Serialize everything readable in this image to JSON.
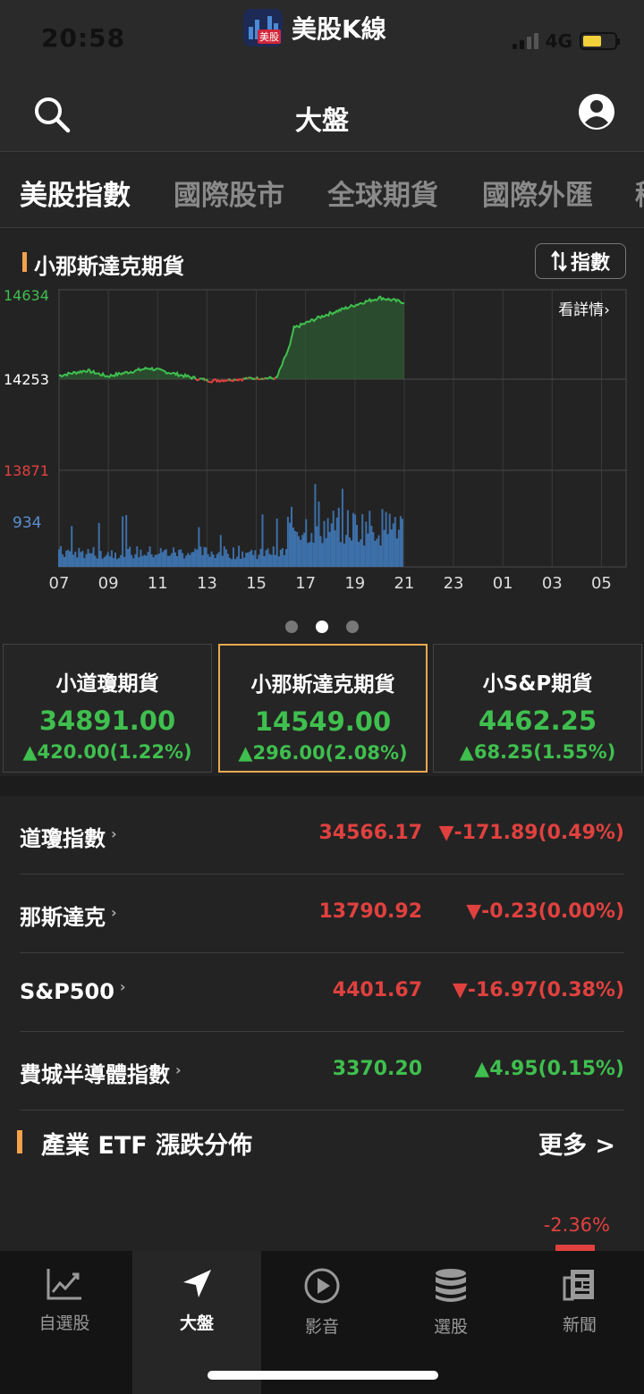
{
  "status": {
    "time": "20:58",
    "app_name": "美股K線",
    "app_logo_text": "美股",
    "network": "4G"
  },
  "nav": {
    "title": "大盤",
    "search_icon": "search-icon",
    "user_icon": "user-icon"
  },
  "tabs": [
    {
      "label": "美股指數",
      "active": true
    },
    {
      "label": "國際股市",
      "active": false
    },
    {
      "label": "全球期貨",
      "active": false
    },
    {
      "label": "國際外匯",
      "active": false
    },
    {
      "label": "稀",
      "active": false
    }
  ],
  "chart_panel": {
    "title": "小那斯達克期貨",
    "toggle_label": "指數",
    "details_link": "看詳情",
    "pager": {
      "count": 3,
      "active": 1
    }
  },
  "chart_data": {
    "type": "line",
    "title": "小那斯達克期貨",
    "ylabels": [
      "14634",
      "14253",
      "13871"
    ],
    "ylim": [
      13871,
      14634
    ],
    "baseline": 14253,
    "volume_label": "934",
    "volume_max": 934,
    "x_ticks": [
      "07",
      "09",
      "11",
      "13",
      "15",
      "17",
      "19",
      "21",
      "23",
      "01",
      "03",
      "05"
    ],
    "grid": true,
    "colors": {
      "up": "#3fbf4e",
      "down": "#e0413f",
      "volume": "#3d6fa8"
    }
  },
  "futures": [
    {
      "name": "小道瓊期貨",
      "price": "34891.00",
      "change": "▲420.00(1.22%)",
      "selected": false
    },
    {
      "name": "小那斯達克期貨",
      "price": "14549.00",
      "change": "▲296.00(2.08%)",
      "selected": true
    },
    {
      "name": "小S&P期貨",
      "price": "4462.25",
      "change": "▲68.25(1.55%)",
      "selected": false
    }
  ],
  "indices": [
    {
      "name": "道瓊指數",
      "value": "34566.17",
      "change": "▼-171.89(0.49%)",
      "trend": "down"
    },
    {
      "name": "那斯達克",
      "value": "13790.92",
      "change": "▼-0.23(0.00%)",
      "trend": "down"
    },
    {
      "name": "S&P500",
      "value": "4401.67",
      "change": "▼-16.97(0.38%)",
      "trend": "down"
    },
    {
      "name": "費城半導體指數",
      "value": "3370.20",
      "change": "▲4.95(0.15%)",
      "trend": "up"
    }
  ],
  "etf": {
    "title": "產業 ETF 漲跌分佈",
    "more_label": "更多 >",
    "peek_value": "-2.36%"
  },
  "bottom_nav": [
    {
      "label": "自選股",
      "icon": "chart-line-icon",
      "active": false
    },
    {
      "label": "大盤",
      "icon": "navigation-arrow-icon",
      "active": true
    },
    {
      "label": "影音",
      "icon": "play-circle-icon",
      "active": false
    },
    {
      "label": "選股",
      "icon": "database-stack-icon",
      "active": false
    },
    {
      "label": "新聞",
      "icon": "newspaper-icon",
      "active": false
    }
  ]
}
